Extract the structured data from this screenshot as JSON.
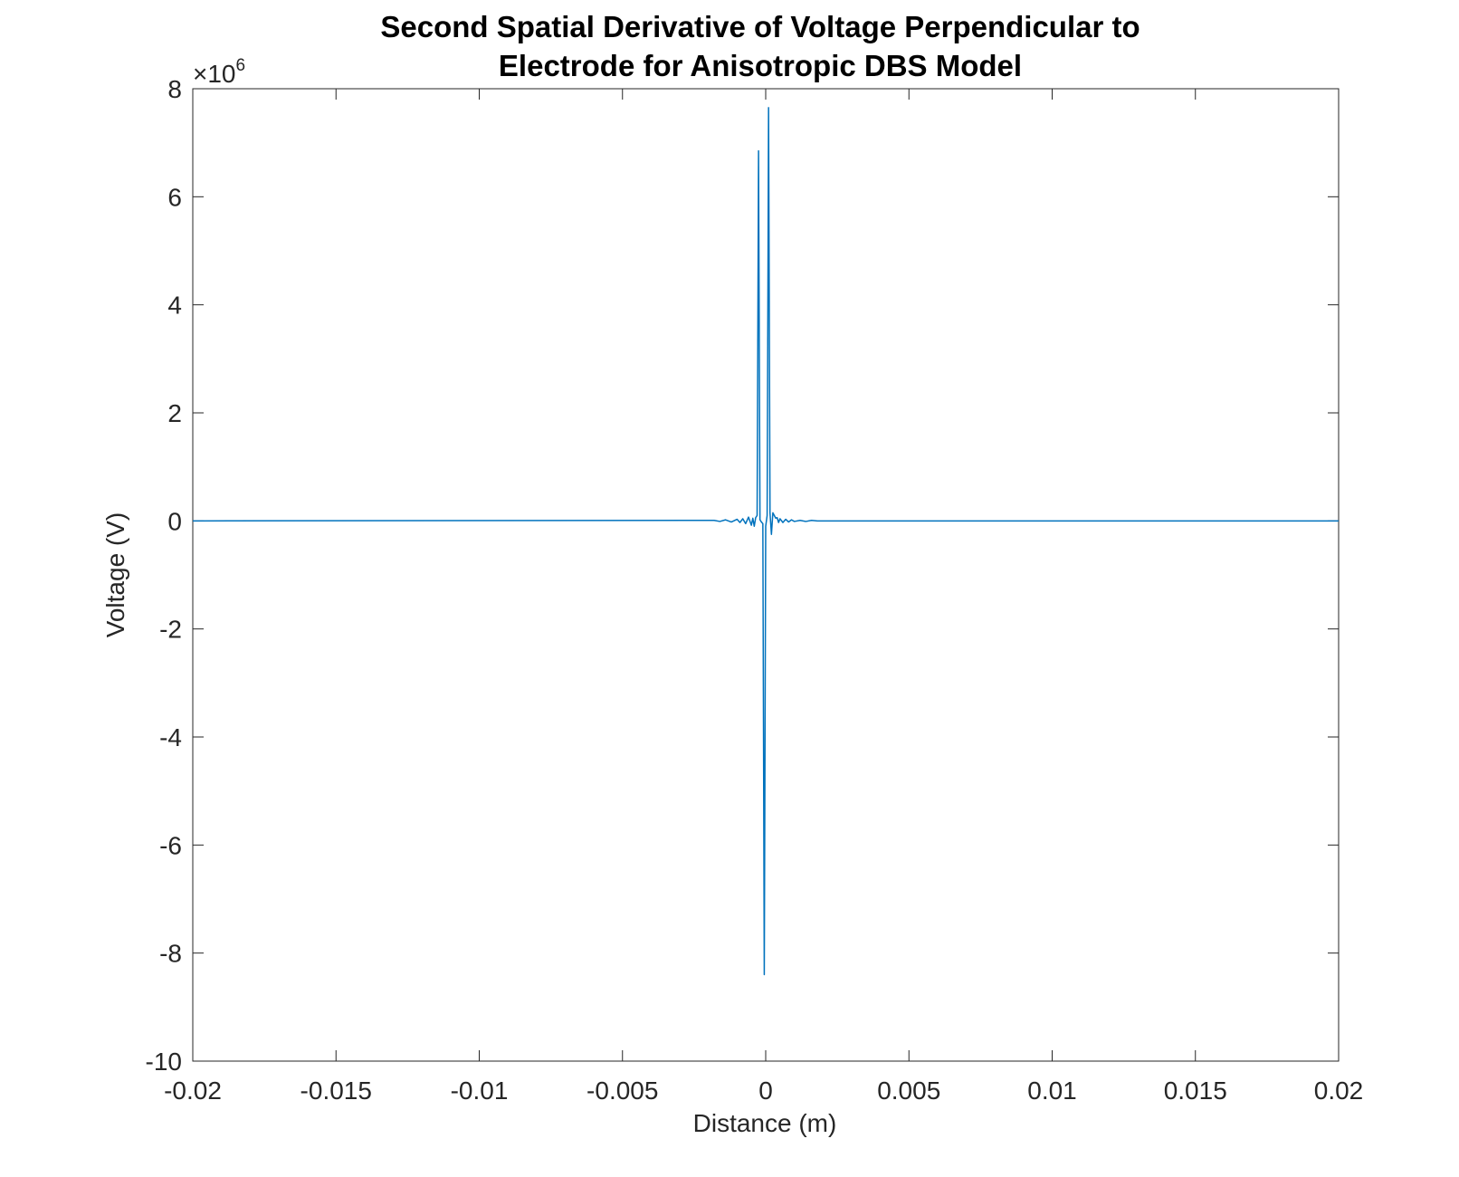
{
  "chart_data": {
    "type": "line",
    "title_lines": [
      "Second Spatial Derivative of Voltage Perpendicular to",
      "Electrode for Anisotropic DBS Model"
    ],
    "xlabel": "Distance (m)",
    "ylabel": "Voltage (V)",
    "y_exponent": {
      "prefix": "×10",
      "power": "6"
    },
    "xlim": [
      -0.02,
      0.02
    ],
    "ylim": [
      -10,
      8
    ],
    "x_ticks": [
      -0.02,
      -0.015,
      -0.01,
      -0.005,
      0,
      0.005,
      0.01,
      0.015,
      0.02
    ],
    "x_tick_labels": [
      "-0.02",
      "-0.015",
      "-0.01",
      "-0.005",
      "0",
      "0.005",
      "0.01",
      "0.015",
      "0.02"
    ],
    "y_ticks": [
      -10,
      -8,
      -6,
      -4,
      -2,
      0,
      2,
      4,
      6,
      8
    ],
    "y_tick_labels": [
      "-10",
      "-8",
      "-6",
      "-4",
      "-2",
      "0",
      "2",
      "4",
      "6",
      "8"
    ],
    "grid": false,
    "series_color": "#0072BD",
    "series": [
      {
        "x": [
          -0.02,
          -0.0018,
          -0.0016,
          -0.0014,
          -0.0012,
          -0.001,
          -0.0009,
          -0.0008,
          -0.0007,
          -0.0006,
          -0.0005,
          -0.00045,
          -0.0004,
          -0.00035,
          -0.0003,
          -0.00025,
          -0.0002,
          -0.00015,
          -0.0001,
          -5e-05,
          0,
          5e-05,
          0.0001,
          0.00015,
          0.0002,
          0.00025,
          0.0003,
          0.00035,
          0.0004,
          0.00045,
          0.0005,
          0.0006,
          0.0007,
          0.0008,
          0.0009,
          0.001,
          0.0012,
          0.0014,
          0.0016,
          0.0018,
          0.02
        ],
        "y": [
          0,
          0.01,
          -0.01,
          0.02,
          -0.02,
          0.03,
          -0.03,
          0.04,
          -0.05,
          0.07,
          -0.08,
          0.05,
          -0.1,
          0.06,
          0.1,
          6.85,
          0.02,
          -0.02,
          -0.05,
          -8.4,
          -0.1,
          0.1,
          7.65,
          0.15,
          -0.25,
          0.15,
          0.1,
          0.05,
          0.06,
          -0.03,
          0.04,
          -0.03,
          0.03,
          -0.02,
          0.02,
          -0.01,
          0.01,
          -0.01,
          0.01,
          0,
          0
        ]
      }
    ]
  }
}
